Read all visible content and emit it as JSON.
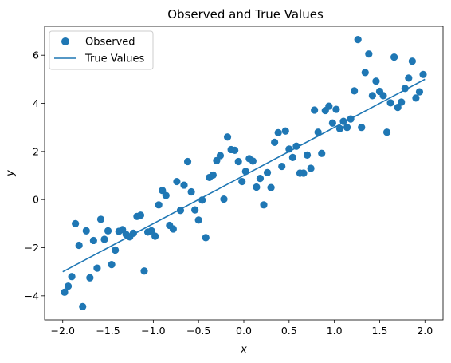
{
  "chart_data": {
    "type": "scatter",
    "title": "Observed and True Values",
    "xlabel": "x",
    "ylabel": "y",
    "xlim": [
      -2.2,
      2.2
    ],
    "ylim": [
      -5.0,
      7.2
    ],
    "xticks": [
      -2.0,
      -1.5,
      -1.0,
      -0.5,
      0.0,
      0.5,
      1.0,
      1.5,
      2.0
    ],
    "xtick_labels": [
      "−2.0",
      "−1.5",
      "−1.0",
      "−0.5",
      "0.0",
      "0.5",
      "1.0",
      "1.5",
      "2.0"
    ],
    "yticks": [
      -4,
      -2,
      0,
      2,
      4,
      6
    ],
    "ytick_labels": [
      "−4",
      "−2",
      "0",
      "2",
      "4",
      "6"
    ],
    "grid": false,
    "legend_position": "top-left",
    "colors": {
      "series": "#1f77b4"
    },
    "series": [
      {
        "name": "Observed",
        "kind": "scatter",
        "points": [
          [
            -1.98,
            -3.85
          ],
          [
            -1.94,
            -3.6
          ],
          [
            -1.9,
            -3.2
          ],
          [
            -1.86,
            -1.0
          ],
          [
            -1.82,
            -1.9
          ],
          [
            -1.78,
            -4.45
          ],
          [
            -1.74,
            -1.3
          ],
          [
            -1.7,
            -3.25
          ],
          [
            -1.66,
            -1.7
          ],
          [
            -1.62,
            -2.85
          ],
          [
            -1.58,
            -0.82
          ],
          [
            -1.54,
            -1.65
          ],
          [
            -1.5,
            -1.3
          ],
          [
            -1.46,
            -2.7
          ],
          [
            -1.42,
            -2.1
          ],
          [
            -1.38,
            -1.32
          ],
          [
            -1.34,
            -1.25
          ],
          [
            -1.3,
            -1.45
          ],
          [
            -1.26,
            -1.55
          ],
          [
            -1.22,
            -1.4
          ],
          [
            -1.18,
            -0.7
          ],
          [
            -1.14,
            -0.65
          ],
          [
            -1.1,
            -2.97
          ],
          [
            -1.06,
            -1.35
          ],
          [
            -1.02,
            -1.3
          ],
          [
            -0.98,
            -1.52
          ],
          [
            -0.94,
            -0.22
          ],
          [
            -0.9,
            0.38
          ],
          [
            -0.86,
            0.17
          ],
          [
            -0.82,
            -1.07
          ],
          [
            -0.78,
            -1.22
          ],
          [
            -0.74,
            0.75
          ],
          [
            -0.7,
            -0.45
          ],
          [
            -0.66,
            0.6
          ],
          [
            -0.62,
            1.58
          ],
          [
            -0.58,
            0.32
          ],
          [
            -0.54,
            -0.43
          ],
          [
            -0.5,
            -0.85
          ],
          [
            -0.46,
            -0.02
          ],
          [
            -0.42,
            -1.58
          ],
          [
            -0.38,
            0.92
          ],
          [
            -0.34,
            1.02
          ],
          [
            -0.3,
            1.62
          ],
          [
            -0.26,
            1.83
          ],
          [
            -0.22,
            0.02
          ],
          [
            -0.18,
            2.6
          ],
          [
            -0.14,
            2.08
          ],
          [
            -0.1,
            2.05
          ],
          [
            -0.06,
            1.58
          ],
          [
            -0.02,
            0.75
          ],
          [
            0.02,
            1.17
          ],
          [
            0.06,
            1.7
          ],
          [
            0.1,
            1.6
          ],
          [
            0.14,
            0.52
          ],
          [
            0.18,
            0.88
          ],
          [
            0.22,
            -0.22
          ],
          [
            0.26,
            1.12
          ],
          [
            0.3,
            0.5
          ],
          [
            0.34,
            2.38
          ],
          [
            0.38,
            2.78
          ],
          [
            0.42,
            1.38
          ],
          [
            0.46,
            2.85
          ],
          [
            0.5,
            2.1
          ],
          [
            0.54,
            1.75
          ],
          [
            0.58,
            2.22
          ],
          [
            0.62,
            1.1
          ],
          [
            0.66,
            1.1
          ],
          [
            0.7,
            1.85
          ],
          [
            0.74,
            1.3
          ],
          [
            0.78,
            3.72
          ],
          [
            0.82,
            2.8
          ],
          [
            0.86,
            1.92
          ],
          [
            0.9,
            3.7
          ],
          [
            0.94,
            3.88
          ],
          [
            0.98,
            3.18
          ],
          [
            1.02,
            3.75
          ],
          [
            1.06,
            2.95
          ],
          [
            1.1,
            3.25
          ],
          [
            1.14,
            3.0
          ],
          [
            1.18,
            3.35
          ],
          [
            1.22,
            4.52
          ],
          [
            1.26,
            6.65
          ],
          [
            1.3,
            3.0
          ],
          [
            1.34,
            5.28
          ],
          [
            1.38,
            6.05
          ],
          [
            1.42,
            4.32
          ],
          [
            1.46,
            4.92
          ],
          [
            1.5,
            4.5
          ],
          [
            1.54,
            4.32
          ],
          [
            1.58,
            2.8
          ],
          [
            1.62,
            4.02
          ],
          [
            1.66,
            5.92
          ],
          [
            1.7,
            3.83
          ],
          [
            1.74,
            4.05
          ],
          [
            1.78,
            4.62
          ],
          [
            1.82,
            5.05
          ],
          [
            1.86,
            5.75
          ],
          [
            1.9,
            4.22
          ],
          [
            1.94,
            4.48
          ],
          [
            1.98,
            5.2
          ]
        ]
      },
      {
        "name": "True Values",
        "kind": "line",
        "points": [
          [
            -2.0,
            -3.0
          ],
          [
            2.0,
            5.0
          ]
        ]
      }
    ]
  }
}
